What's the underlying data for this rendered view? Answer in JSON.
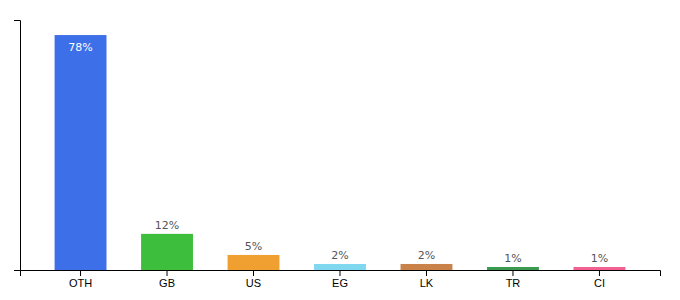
{
  "chart_data": {
    "type": "bar",
    "categories": [
      "OTH",
      "GB",
      "US",
      "EG",
      "LK",
      "TR",
      "CI"
    ],
    "values": [
      78,
      12,
      5,
      2,
      2,
      1,
      1
    ],
    "value_labels": [
      "78%",
      "12%",
      "5%",
      "2%",
      "2%",
      "1%",
      "1%"
    ],
    "colors": [
      "#3d6fe8",
      "#3dbf3d",
      "#f0a030",
      "#80d8f0",
      "#c8824a",
      "#3a9a50",
      "#f06090"
    ],
    "ylim": [
      0,
      83
    ],
    "yticks": [],
    "data_labels": true,
    "tick_labels": "x",
    "grid": false
  }
}
